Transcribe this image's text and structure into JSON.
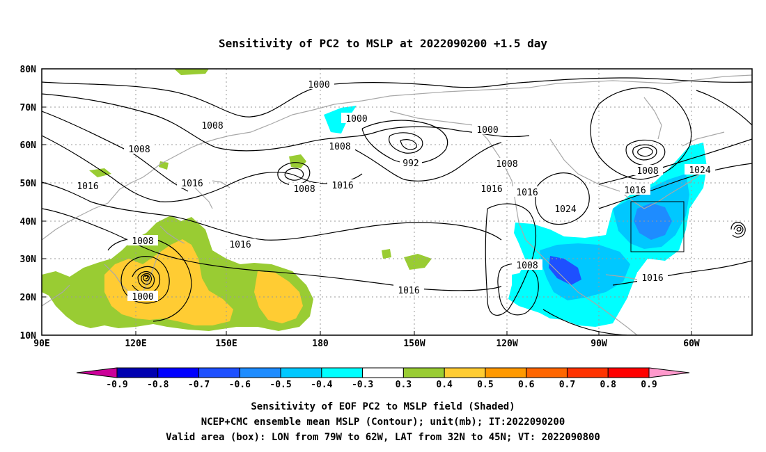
{
  "title": "Sensitivity of PC2 to MSLP at 2022090200 +1.5 day",
  "lat_labels": [
    "80N",
    "70N",
    "60N",
    "50N",
    "40N",
    "30N",
    "20N",
    "10N"
  ],
  "lon_labels": [
    "90E",
    "120E",
    "150E",
    "180",
    "150W",
    "120W",
    "90W",
    "60W"
  ],
  "contour_labels": [
    {
      "text": "1000"
    },
    {
      "text": "1008"
    },
    {
      "text": "1000"
    },
    {
      "text": "1000"
    },
    {
      "text": "1008"
    },
    {
      "text": "1008"
    },
    {
      "text": "992"
    },
    {
      "text": "1008"
    },
    {
      "text": "1008"
    },
    {
      "text": "1024"
    },
    {
      "text": "1016"
    },
    {
      "text": "1016"
    },
    {
      "text": "1008"
    },
    {
      "text": "1016"
    },
    {
      "text": "1016"
    },
    {
      "text": "1016"
    },
    {
      "text": "1016"
    },
    {
      "text": "1024"
    },
    {
      "text": "1008"
    },
    {
      "text": "1016"
    },
    {
      "text": "1000"
    },
    {
      "text": "1008"
    },
    {
      "text": "1016"
    },
    {
      "text": "1016"
    }
  ],
  "colorbar": {
    "labels": [
      "-0.9",
      "-0.8",
      "-0.7",
      "-0.6",
      "-0.5",
      "-0.4",
      "-0.3",
      "0.3",
      "0.4",
      "0.5",
      "0.6",
      "0.7",
      "0.8",
      "0.9"
    ],
    "colors": [
      "#0000b0",
      "#0000ff",
      "#1e50ff",
      "#1e8cff",
      "#00c8ff",
      "#00ffff",
      "#ffffff",
      "#99cc33",
      "#ffcc33",
      "#ff9900",
      "#ff6600",
      "#ff3300",
      "#ff0000"
    ],
    "low_color": "#cc0099",
    "high_color": "#ff99cc"
  },
  "caption": {
    "line1": "Sensitivity of EOF PC2 to MSLP field (Shaded)",
    "line2": "NCEP+CMC ensemble mean MSLP (Contour); unit(mb); IT:2022090200",
    "line3": "Valid area (box): LON from 79W to 62W, LAT from 32N to 45N; VT: 2022090800"
  },
  "valid_box": {
    "lon_min_deg_w": 79,
    "lon_max_deg_w": 62,
    "lat_min": 32,
    "lat_max": 45
  }
}
